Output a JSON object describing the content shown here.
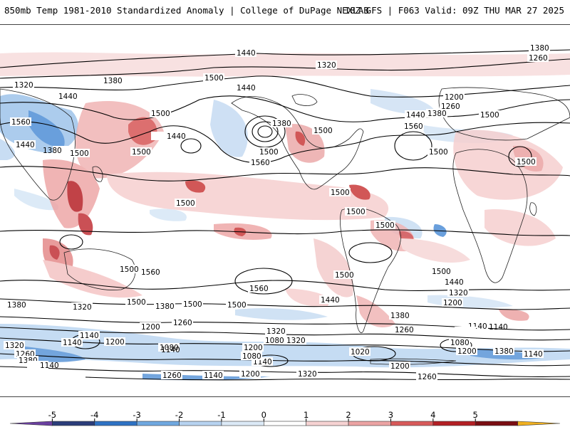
{
  "header": {
    "title_left": "850mb Temp 1981-2010 Standardized Anomaly | College of DuPage NEXLAB",
    "title_right": "18Z GFS | F063 Valid: 09Z THU MAR 27 2025"
  },
  "colorbar": {
    "ticks": [
      "-5",
      "-4",
      "-3",
      "-2",
      "-1",
      "0",
      "1",
      "2",
      "3",
      "4",
      "5"
    ],
    "colors": [
      "#6a3fa0",
      "#2b3d7a",
      "#2e72c4",
      "#6fa8e0",
      "#b7d3f0",
      "#dce9f6",
      "#ffffff",
      "#f6d3d3",
      "#eba3a3",
      "#d85a5a",
      "#b31f24",
      "#7a0d12",
      "#f0b020"
    ]
  },
  "contour_labels": [
    "1440",
    "1380",
    "1260",
    "1320",
    "1200",
    "1140",
    "1500",
    "1560",
    "1080",
    "1020"
  ],
  "map_labels": [
    {
      "id": "l1",
      "text": "1440"
    },
    {
      "id": "l2",
      "text": "1380"
    },
    {
      "id": "l3",
      "text": "1260"
    },
    {
      "id": "l4",
      "text": "1320"
    },
    {
      "id": "l5",
      "text": "1380"
    },
    {
      "id": "l6",
      "text": "1440"
    },
    {
      "id": "l7",
      "text": "1500"
    },
    {
      "id": "l8",
      "text": "1440"
    },
    {
      "id": "l9",
      "text": "1320"
    },
    {
      "id": "l10",
      "text": "1380"
    },
    {
      "id": "l11",
      "text": "1500"
    },
    {
      "id": "l12",
      "text": "1440"
    },
    {
      "id": "l13",
      "text": "1500"
    },
    {
      "id": "l14",
      "text": "1560"
    },
    {
      "id": "l15",
      "text": "1440"
    },
    {
      "id": "l16",
      "text": "1380"
    },
    {
      "id": "l17",
      "text": "1500"
    },
    {
      "id": "l18",
      "text": "1500"
    },
    {
      "id": "l19",
      "text": "1500"
    },
    {
      "id": "l20",
      "text": "1560"
    },
    {
      "id": "l21",
      "text": "1500"
    },
    {
      "id": "l22",
      "text": "1500"
    },
    {
      "id": "l23",
      "text": "1200"
    },
    {
      "id": "l24",
      "text": "1260"
    },
    {
      "id": "l25",
      "text": "1380"
    },
    {
      "id": "l26",
      "text": "1440"
    },
    {
      "id": "l27",
      "text": "1500"
    },
    {
      "id": "l28",
      "text": "1560"
    },
    {
      "id": "l29",
      "text": "1500"
    },
    {
      "id": "l30",
      "text": "1500"
    },
    {
      "id": "l31",
      "text": "1500"
    },
    {
      "id": "l32",
      "text": "1500"
    },
    {
      "id": "l33",
      "text": "1500"
    },
    {
      "id": "l34",
      "text": "1500"
    },
    {
      "id": "l35",
      "text": "1500"
    },
    {
      "id": "l36",
      "text": "1560"
    },
    {
      "id": "l37",
      "text": "1500"
    },
    {
      "id": "l38",
      "text": "1560"
    },
    {
      "id": "l39",
      "text": "1500"
    },
    {
      "id": "l40",
      "text": "1440"
    },
    {
      "id": "l41",
      "text": "1320"
    },
    {
      "id": "l42",
      "text": "1200"
    },
    {
      "id": "l43",
      "text": "1440"
    },
    {
      "id": "l44",
      "text": "1380"
    },
    {
      "id": "l45",
      "text": "1500"
    },
    {
      "id": "l46",
      "text": "1380"
    },
    {
      "id": "l47",
      "text": "1320"
    },
    {
      "id": "l48",
      "text": "1260"
    },
    {
      "id": "l49",
      "text": "1200"
    },
    {
      "id": "l50",
      "text": "1380"
    },
    {
      "id": "l51",
      "text": "1260"
    },
    {
      "id": "l52",
      "text": "1140"
    },
    {
      "id": "l53",
      "text": "1140"
    },
    {
      "id": "l54",
      "text": "1200"
    },
    {
      "id": "l55",
      "text": "1320"
    },
    {
      "id": "l56",
      "text": "1260"
    },
    {
      "id": "l57",
      "text": "1140"
    },
    {
      "id": "l58",
      "text": "1080"
    },
    {
      "id": "l59",
      "text": "1200"
    },
    {
      "id": "l60",
      "text": "1320"
    },
    {
      "id": "l61",
      "text": "1380"
    },
    {
      "id": "l62",
      "text": "1140"
    },
    {
      "id": "l63",
      "text": "1320"
    },
    {
      "id": "l64",
      "text": "1380"
    },
    {
      "id": "l65",
      "text": "1140"
    },
    {
      "id": "l66",
      "text": "1080"
    },
    {
      "id": "l67",
      "text": "1020"
    },
    {
      "id": "l68",
      "text": "1140"
    },
    {
      "id": "l69",
      "text": "1200"
    },
    {
      "id": "l70",
      "text": "1320"
    },
    {
      "id": "l71",
      "text": "1260"
    },
    {
      "id": "l72",
      "text": "1140"
    },
    {
      "id": "l73",
      "text": "1200"
    },
    {
      "id": "l74",
      "text": "1260"
    },
    {
      "id": "l75",
      "text": "1080"
    },
    {
      "id": "l76",
      "text": "1140"
    },
    {
      "id": "l77",
      "text": "1200"
    },
    {
      "id": "l78",
      "text": "1080"
    },
    {
      "id": "l79",
      "text": "1140"
    }
  ]
}
